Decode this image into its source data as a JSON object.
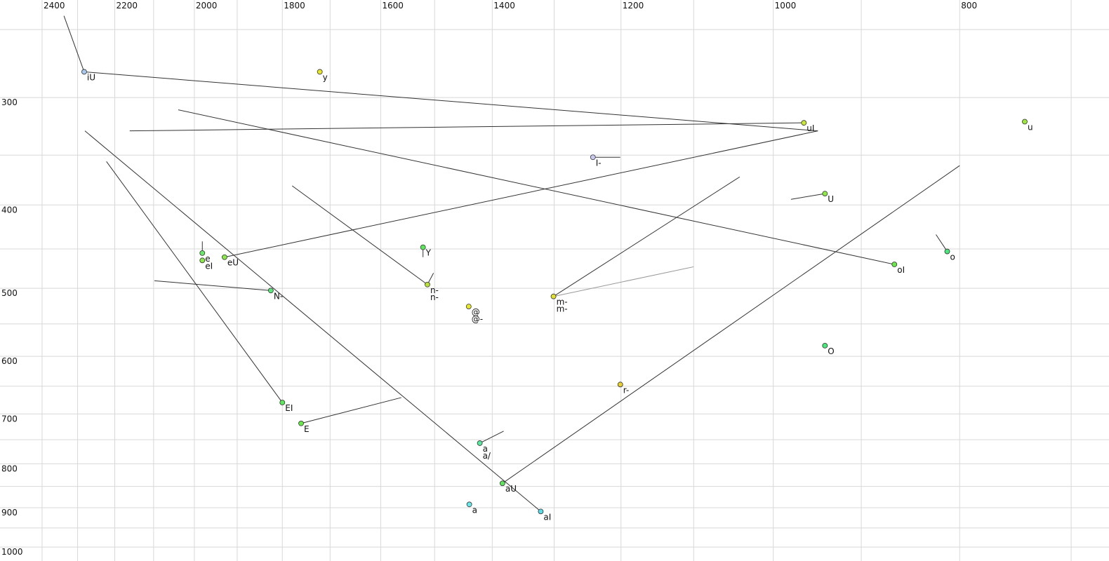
{
  "chart_data": {
    "type": "scatter",
    "xscale": "log",
    "yscale": "log",
    "xlim": [
      2524,
      669
    ],
    "ylim": [
      231,
      1038
    ],
    "xticks": [
      2400,
      2200,
      2000,
      1800,
      1600,
      1400,
      1200,
      1000,
      800
    ],
    "yticks": [
      300,
      400,
      500,
      600,
      700,
      800,
      900,
      1000
    ],
    "xgrid": [
      2400,
      2300,
      2200,
      2100,
      2000,
      1900,
      1800,
      1700,
      1600,
      1500,
      1400,
      1300,
      1200,
      1100,
      1000,
      900,
      800,
      700
    ],
    "ygrid": [
      250,
      300,
      350,
      400,
      450,
      500,
      550,
      600,
      650,
      700,
      750,
      800,
      850,
      900,
      950,
      1000
    ],
    "grid_color": "#d8d8d8",
    "line_color": "#333333",
    "points": [
      {
        "x": 2282,
        "y": 280,
        "color": "#a8c8ee",
        "labels": [
          {
            "text": "iU",
            "color": "#111111"
          }
        ]
      },
      {
        "x": 1721,
        "y": 280,
        "color": "#e8e82a",
        "labels": [
          {
            "text": "y",
            "color": "#111111"
          }
        ]
      },
      {
        "x": 964,
        "y": 321,
        "color": "#c8e838",
        "labels": [
          {
            "text": "uI",
            "color": "#111111"
          }
        ]
      },
      {
        "x": 740,
        "y": 320,
        "color": "#9be83a",
        "labels": [
          {
            "text": "u",
            "color": "#111111"
          }
        ]
      },
      {
        "x": 1241,
        "y": 352,
        "color": "#c8c8f0",
        "labels": [
          {
            "text": "I-",
            "color": "#111111"
          }
        ]
      },
      {
        "x": 940,
        "y": 388,
        "color": "#8fe84a",
        "labels": [
          {
            "text": "U",
            "color": "#111111"
          }
        ]
      },
      {
        "x": 812,
        "y": 453,
        "color": "#4ae87a",
        "labels": [
          {
            "text": "o",
            "color": "#111111"
          }
        ]
      },
      {
        "x": 865,
        "y": 469,
        "color": "#6ae84a",
        "labels": [
          {
            "text": "oI",
            "color": "#111111"
          }
        ]
      },
      {
        "x": 1981,
        "y": 455,
        "color": "#6ae86a",
        "labels": [
          {
            "text": "e",
            "color": "#111111"
          }
        ]
      },
      {
        "x": 1981,
        "y": 464,
        "color": "#8ae84a",
        "labels": [
          {
            "text": "eI",
            "color": "#111111"
          }
        ]
      },
      {
        "x": 1929,
        "y": 460,
        "color": "#8ae84a",
        "labels": [
          {
            "text": "eU",
            "color": "#111111"
          }
        ]
      },
      {
        "x": 1825,
        "y": 503,
        "color": "#5ae87a",
        "labels": [
          {
            "text": "N-",
            "color": "#111111"
          }
        ]
      },
      {
        "x": 1521,
        "y": 448,
        "color": "#5ae85a",
        "labels": [
          {
            "text": "Y",
            "color": "#111111"
          }
        ]
      },
      {
        "x": 1513,
        "y": 495,
        "color": "#b8e03a",
        "labels": [
          {
            "text": "n-",
            "color": "#8888aa"
          },
          {
            "text": "n-",
            "color": "#111111"
          }
        ]
      },
      {
        "x": 1301,
        "y": 511,
        "color": "#e0e030",
        "labels": [
          {
            "text": "m-",
            "color": "#999999"
          },
          {
            "text": "m-",
            "color": "#111111"
          }
        ]
      },
      {
        "x": 1440,
        "y": 525,
        "color": "#e8e82a",
        "labels": [
          {
            "text": "@",
            "color": "#111111"
          },
          {
            "text": "@-",
            "color": "#111111"
          }
        ]
      },
      {
        "x": 940,
        "y": 583,
        "color": "#4ae87a",
        "labels": [
          {
            "text": "O",
            "color": "#111111"
          }
        ]
      },
      {
        "x": 1201,
        "y": 647,
        "color": "#e8d030",
        "labels": [
          {
            "text": "r-",
            "color": "#111111"
          }
        ]
      },
      {
        "x": 1800,
        "y": 679,
        "color": "#5ae85a",
        "labels": [
          {
            "text": "EI",
            "color": "#111111"
          }
        ]
      },
      {
        "x": 1760,
        "y": 718,
        "color": "#6ae84a",
        "labels": [
          {
            "text": "E",
            "color": "#111111"
          }
        ]
      },
      {
        "x": 1421,
        "y": 757,
        "color": "#5ae8a0",
        "labels": [
          {
            "text": "a",
            "color": "#999999"
          },
          {
            "text": "a/",
            "color": "#111111"
          }
        ]
      },
      {
        "x": 1383,
        "y": 843,
        "color": "#5ae85a",
        "labels": [
          {
            "text": "aU",
            "color": "#111111"
          }
        ]
      },
      {
        "x": 1439,
        "y": 892,
        "color": "#6ae8e8",
        "labels": [
          {
            "text": "a",
            "color": "#111111"
          }
        ]
      },
      {
        "x": 1321,
        "y": 909,
        "color": "#5adce8",
        "labels": [
          {
            "text": "aI",
            "color": "#111111"
          }
        ]
      }
    ],
    "lines": [
      {
        "x": [
          2338,
          2282
        ],
        "y": [
          241,
          280
        ]
      },
      {
        "x": [
          2282,
          948
        ],
        "y": [
          280,
          328
        ]
      },
      {
        "x": [
          2161,
          964
        ],
        "y": [
          328,
          321
        ]
      },
      {
        "x": [
          2039,
          865
        ],
        "y": [
          310,
          469
        ]
      },
      {
        "x": [
          2280,
          1321
        ],
        "y": [
          328,
          909
        ]
      },
      {
        "x": [
          2222,
          1800
        ],
        "y": [
          356,
          679
        ]
      },
      {
        "x": [
          1929,
          948
        ],
        "y": [
          460,
          328
        ]
      },
      {
        "x": [
          1981,
          1981
        ],
        "y": [
          441,
          455
        ]
      },
      {
        "x": [
          2098,
          1825
        ],
        "y": [
          490,
          503
        ]
      },
      {
        "x": [
          1779,
          1513
        ],
        "y": [
          380,
          495
        ]
      },
      {
        "x": [
          1513,
          1502
        ],
        "y": [
          495,
          480
        ]
      },
      {
        "x": [
          1521,
          1521
        ],
        "y": [
          448,
          460
        ]
      },
      {
        "x": [
          1760,
          1561
        ],
        "y": [
          718,
          670
        ]
      },
      {
        "x": [
          1421,
          1381
        ],
        "y": [
          757,
          733
        ]
      },
      {
        "x": [
          1383,
          800
        ],
        "y": [
          843,
          360
        ]
      },
      {
        "x": [
          1301,
          1041
        ],
        "y": [
          511,
          371
        ]
      },
      {
        "x": [
          1301,
          1100
        ],
        "y": [
          511,
          472
        ],
        "color": "#999999"
      },
      {
        "x": [
          1241,
          1201
        ],
        "y": [
          352,
          352
        ]
      },
      {
        "x": [
          979,
          940
        ],
        "y": [
          394,
          388
        ]
      },
      {
        "x": [
          823,
          812
        ],
        "y": [
          433,
          453
        ]
      }
    ]
  }
}
